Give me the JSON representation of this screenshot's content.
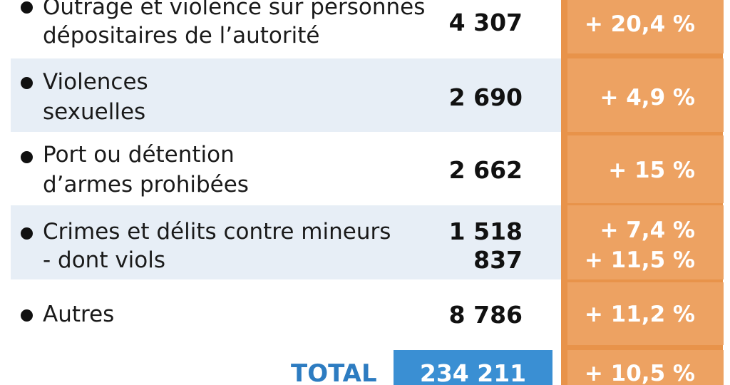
{
  "rows": [
    {
      "label_lines": [
        "Outrage et violence sur personnes",
        "dépositaires de l’autorité"
      ],
      "values": [
        "4 307"
      ],
      "changes": [
        "+ 20,4 %"
      ]
    },
    {
      "label_lines": [
        "Violences",
        "sexuelles"
      ],
      "values": [
        "2 690"
      ],
      "changes": [
        "+ 4,9 %"
      ]
    },
    {
      "label_lines": [
        "Port ou détention",
        "d’armes prohibées"
      ],
      "values": [
        "2 662"
      ],
      "changes": [
        "+ 15 %"
      ]
    },
    {
      "label_lines": [
        "Crimes et délits contre mineurs",
        "- dont viols"
      ],
      "values": [
        "1 518",
        "837"
      ],
      "changes": [
        "+ 7,4 %",
        "+ 11,5 %"
      ]
    },
    {
      "label_lines": [
        "Autres"
      ],
      "values": [
        "8 786"
      ],
      "changes": [
        "+ 11,2 %"
      ]
    }
  ],
  "total": {
    "label": "TOTAL",
    "value": "234 211",
    "change": "+ 10,5 %"
  },
  "colors": {
    "row_shade": "#e7eef6",
    "orange_column": "#eda262",
    "orange_background": "#e8934a",
    "total_blue": "#3a8fd3",
    "total_label_blue": "#2d7cc1",
    "text_dark": "#111111"
  }
}
